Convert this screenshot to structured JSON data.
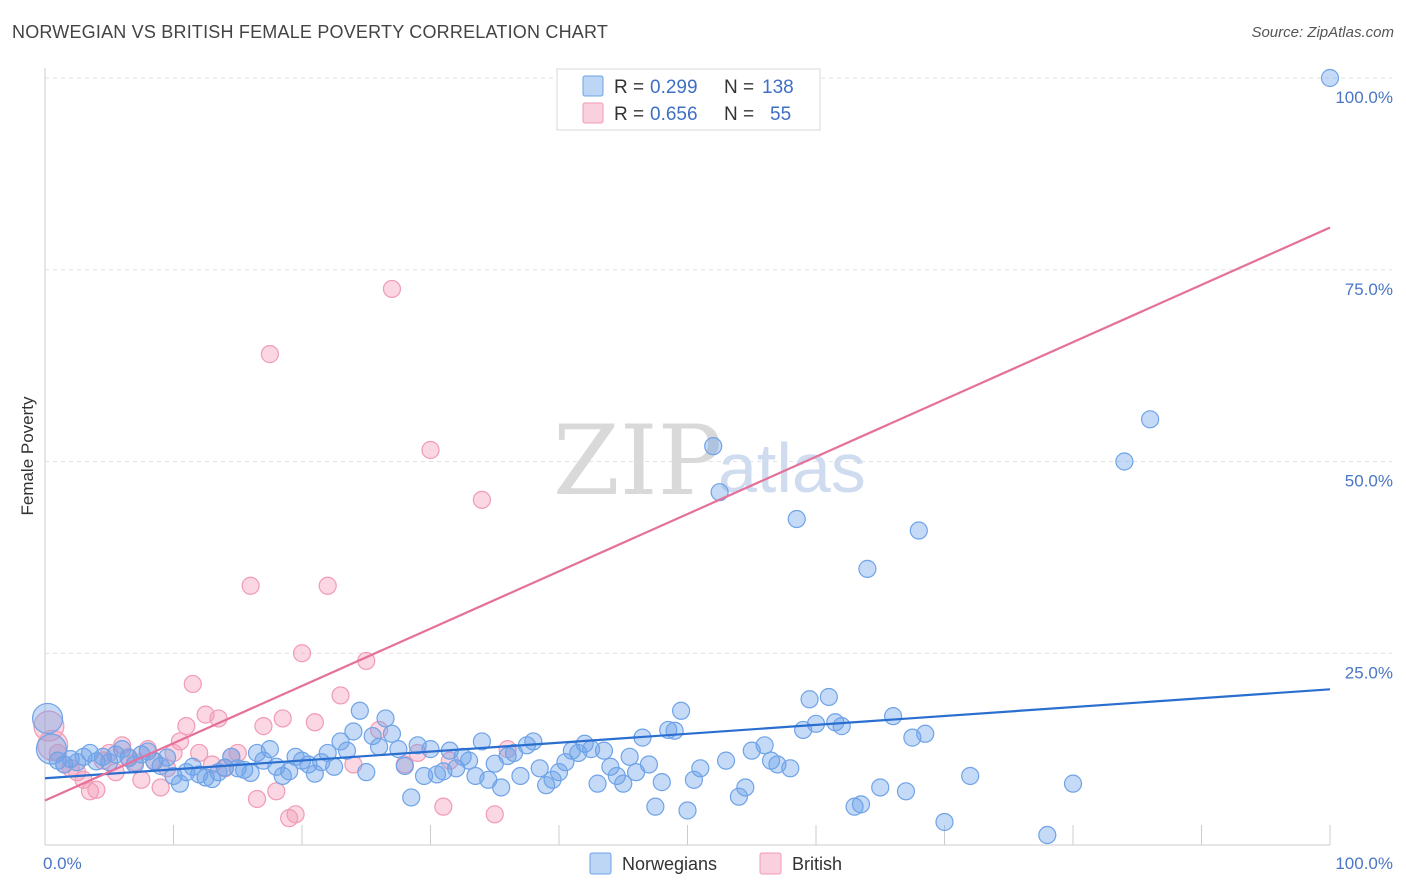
{
  "header": {
    "title": "NORWEGIAN VS BRITISH FEMALE POVERTY CORRELATION CHART",
    "source": "Source: ZipAtlas.com"
  },
  "watermark": {
    "zip": "ZIP",
    "atlas": "atlas"
  },
  "legend": {
    "rows": [
      {
        "r_label": "R =",
        "r_value": "0.299",
        "n_label": "N =",
        "n_value": "138",
        "color": "#6fa3e8"
      },
      {
        "r_label": "R =",
        "r_value": "0.656",
        "n_label": "N =",
        "n_value": "55",
        "color": "#f29ab6"
      }
    ]
  },
  "bottom_legend": {
    "items": [
      "Norwegians",
      "British"
    ]
  },
  "chart_data": {
    "type": "scatter",
    "title": "NORWEGIAN VS BRITISH FEMALE POVERTY CORRELATION CHART",
    "xlabel": "",
    "ylabel": "Female Poverty",
    "xlim": [
      0,
      100
    ],
    "ylim": [
      0,
      100
    ],
    "x_tick_labels": [
      "0.0%",
      "100.0%"
    ],
    "y_ticks": [
      25,
      50,
      75,
      100
    ],
    "y_tick_labels": [
      "25.0%",
      "50.0%",
      "75.0%",
      "100.0%"
    ],
    "grid": "horizontal dashed",
    "legend_placement": "top-center",
    "series": [
      {
        "name": "Norwegians",
        "color": "#6fa3e8",
        "line_color": "#2a6fd0",
        "trend": [
          [
            0,
            8.7
          ],
          [
            100,
            20.3
          ]
        ],
        "points": [
          [
            0.2,
            16.5
          ],
          [
            0.5,
            12.5
          ],
          [
            1,
            11
          ],
          [
            1.5,
            10.5
          ],
          [
            2,
            11.2
          ],
          [
            2.5,
            10.8
          ],
          [
            3,
            11.5
          ],
          [
            3.5,
            12
          ],
          [
            4,
            10.9
          ],
          [
            4.5,
            11.5
          ],
          [
            5,
            10.8
          ],
          [
            5.5,
            11.8
          ],
          [
            6,
            12.5
          ],
          [
            6.5,
            11.3
          ],
          [
            7,
            10.5
          ],
          [
            7.5,
            11.8
          ],
          [
            8,
            12.2
          ],
          [
            8.5,
            10.9
          ],
          [
            9,
            10.3
          ],
          [
            9.5,
            11.4
          ],
          [
            10,
            9
          ],
          [
            10.5,
            8
          ],
          [
            11,
            9.5
          ],
          [
            11.5,
            10.2
          ],
          [
            12,
            9.2
          ],
          [
            12.5,
            8.8
          ],
          [
            13,
            8.6
          ],
          [
            13.5,
            9.5
          ],
          [
            14,
            10.1
          ],
          [
            14.5,
            11.5
          ],
          [
            15,
            10
          ],
          [
            15.5,
            9.8
          ],
          [
            16,
            9.4
          ],
          [
            16.5,
            12
          ],
          [
            17,
            11
          ],
          [
            17.5,
            12.5
          ],
          [
            18,
            10.2
          ],
          [
            18.5,
            9
          ],
          [
            19,
            9.6
          ],
          [
            19.5,
            11.5
          ],
          [
            20,
            11
          ],
          [
            20.5,
            10.5
          ],
          [
            21,
            9.3
          ],
          [
            21.5,
            10.8
          ],
          [
            22,
            12
          ],
          [
            22.5,
            10.2
          ],
          [
            23,
            13.5
          ],
          [
            23.5,
            12.3
          ],
          [
            24,
            14.8
          ],
          [
            24.5,
            17.5
          ],
          [
            25,
            9.5
          ],
          [
            25.5,
            14.2
          ],
          [
            26,
            12.8
          ],
          [
            26.5,
            16.5
          ],
          [
            27,
            14.5
          ],
          [
            27.5,
            12.5
          ],
          [
            28,
            10.3
          ],
          [
            28.5,
            6.2
          ],
          [
            29,
            13
          ],
          [
            29.5,
            9
          ],
          [
            30,
            12.5
          ],
          [
            30.5,
            9.2
          ],
          [
            31,
            9.6
          ],
          [
            31.5,
            12.3
          ],
          [
            32,
            10
          ],
          [
            32.5,
            11.5
          ],
          [
            33,
            11
          ],
          [
            33.5,
            9
          ],
          [
            34,
            13.5
          ],
          [
            34.5,
            8.5
          ],
          [
            35,
            10.6
          ],
          [
            35.5,
            7.5
          ],
          [
            36,
            11.6
          ],
          [
            36.5,
            12
          ],
          [
            37,
            9
          ],
          [
            37.5,
            13
          ],
          [
            38,
            13.5
          ],
          [
            38.5,
            10
          ],
          [
            39,
            7.8
          ],
          [
            39.5,
            8.5
          ],
          [
            40,
            9.5
          ],
          [
            40.5,
            10.8
          ],
          [
            41,
            12.3
          ],
          [
            41.5,
            12
          ],
          [
            42,
            13.2
          ],
          [
            42.5,
            12.5
          ],
          [
            43,
            8
          ],
          [
            43.5,
            12.3
          ],
          [
            44,
            10.2
          ],
          [
            44.5,
            9
          ],
          [
            45,
            8
          ],
          [
            45.5,
            11.5
          ],
          [
            46,
            9.5
          ],
          [
            46.5,
            14
          ],
          [
            47,
            10.5
          ],
          [
            47.5,
            5
          ],
          [
            48,
            8.2
          ],
          [
            48.5,
            15
          ],
          [
            49,
            14.9
          ],
          [
            49.5,
            17.5
          ],
          [
            50,
            4.5
          ],
          [
            50.5,
            8.5
          ],
          [
            51,
            10
          ],
          [
            52,
            52
          ],
          [
            52.5,
            46
          ],
          [
            53,
            11
          ],
          [
            54,
            6.3
          ],
          [
            54.5,
            7.5
          ],
          [
            55,
            12.3
          ],
          [
            56,
            13
          ],
          [
            56.5,
            11
          ],
          [
            57,
            10.5
          ],
          [
            58,
            10
          ],
          [
            58.5,
            42.5
          ],
          [
            59,
            15
          ],
          [
            59.5,
            19
          ],
          [
            60,
            15.8
          ],
          [
            61,
            19.3
          ],
          [
            61.5,
            16
          ],
          [
            62,
            15.5
          ],
          [
            63,
            5
          ],
          [
            63.5,
            5.3
          ],
          [
            64,
            36
          ],
          [
            65,
            7.5
          ],
          [
            66,
            16.8
          ],
          [
            67,
            7
          ],
          [
            67.5,
            14
          ],
          [
            68,
            41
          ],
          [
            68.5,
            14.5
          ],
          [
            70,
            3
          ],
          [
            72,
            9
          ],
          [
            78,
            1.3
          ],
          [
            80,
            8
          ],
          [
            84,
            50
          ],
          [
            86,
            55.5
          ],
          [
            100,
            100
          ]
        ]
      },
      {
        "name": "British",
        "color": "#f29ab6",
        "line_color": "#e5719b",
        "trend": [
          [
            0,
            5.8
          ],
          [
            100,
            80.5
          ]
        ],
        "points": [
          [
            0.3,
            15.5
          ],
          [
            0.6,
            13
          ],
          [
            1,
            12
          ],
          [
            1.5,
            10.5
          ],
          [
            2,
            10
          ],
          [
            2.5,
            9.5
          ],
          [
            3,
            8.5
          ],
          [
            3.5,
            7
          ],
          [
            4,
            7.2
          ],
          [
            4.5,
            11
          ],
          [
            5,
            12
          ],
          [
            5.5,
            9.5
          ],
          [
            6,
            13
          ],
          [
            6.5,
            11.5
          ],
          [
            7,
            10.8
          ],
          [
            7.5,
            8.5
          ],
          [
            8,
            12.5
          ],
          [
            8.5,
            11
          ],
          [
            9,
            7.5
          ],
          [
            9.5,
            10
          ],
          [
            10,
            12
          ],
          [
            10.5,
            13.5
          ],
          [
            11,
            15.5
          ],
          [
            11.5,
            21
          ],
          [
            12,
            12
          ],
          [
            12.5,
            17
          ],
          [
            13,
            10.5
          ],
          [
            13.5,
            16.5
          ],
          [
            14,
            10
          ],
          [
            14.5,
            11.5
          ],
          [
            15,
            12
          ],
          [
            16,
            33.8
          ],
          [
            16.5,
            6
          ],
          [
            17,
            15.5
          ],
          [
            17.5,
            64
          ],
          [
            18,
            7
          ],
          [
            18.5,
            16.5
          ],
          [
            19,
            3.5
          ],
          [
            19.5,
            4
          ],
          [
            20,
            25
          ],
          [
            21,
            16
          ],
          [
            22,
            33.8
          ],
          [
            23,
            19.5
          ],
          [
            24,
            10.5
          ],
          [
            25,
            24
          ],
          [
            26,
            15
          ],
          [
            27,
            72.5
          ],
          [
            28,
            10.5
          ],
          [
            29,
            12
          ],
          [
            30,
            51.5
          ],
          [
            31,
            5
          ],
          [
            31.5,
            11
          ],
          [
            34,
            45
          ],
          [
            35,
            4
          ],
          [
            36,
            12.5
          ]
        ]
      }
    ]
  }
}
